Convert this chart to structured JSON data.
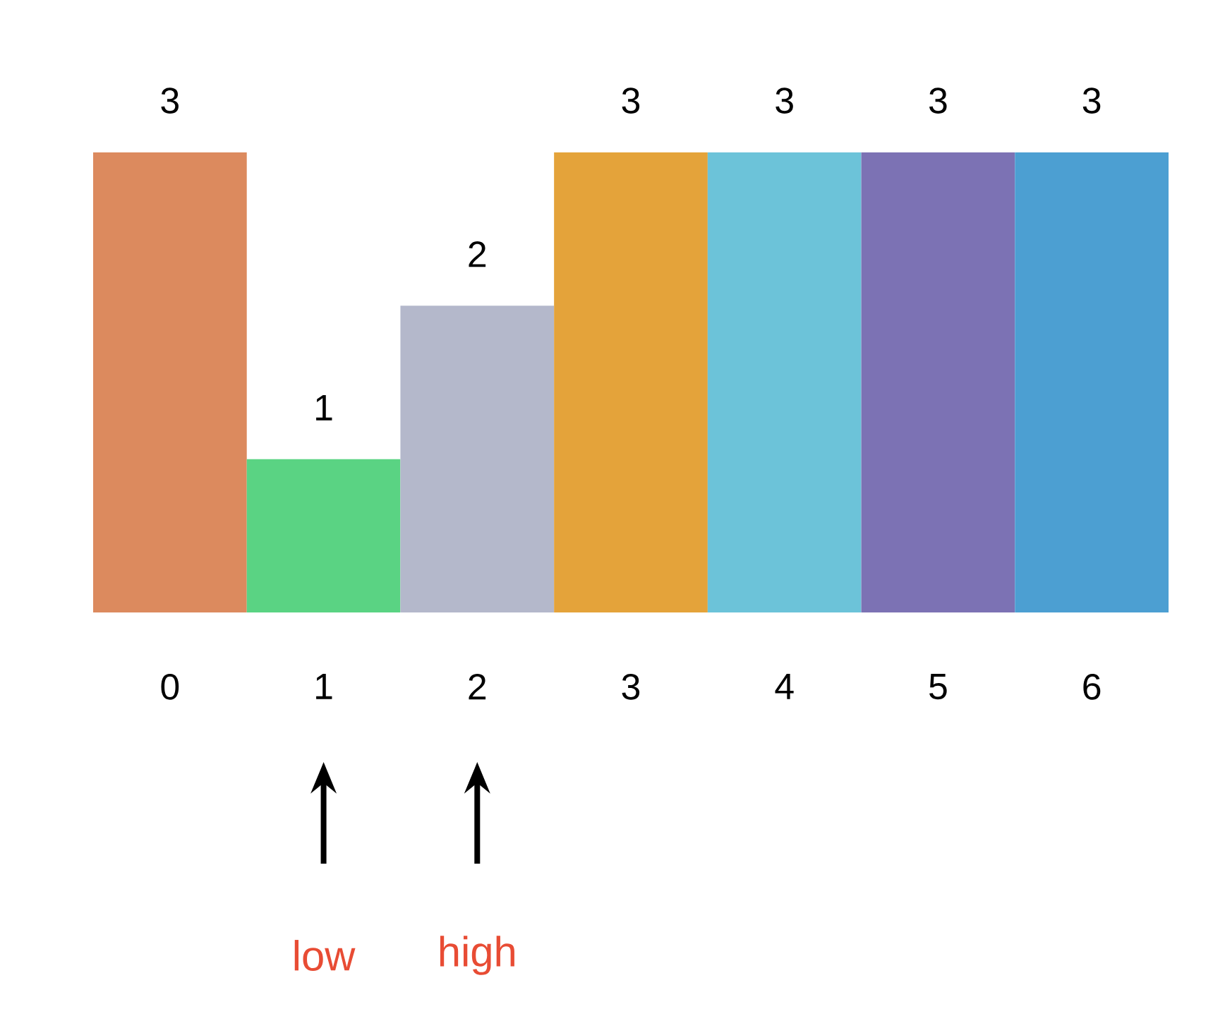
{
  "chart_data": {
    "type": "bar",
    "categories": [
      "0",
      "1",
      "2",
      "3",
      "4",
      "5",
      "6"
    ],
    "values": [
      3,
      1,
      2,
      3,
      3,
      3,
      3
    ],
    "colors": [
      "#dc8a5e",
      "#5ad383",
      "#b4b8cb",
      "#e4a33a",
      "#6cc3d9",
      "#7c72b4",
      "#4c9fd2"
    ],
    "data_labels": true,
    "tick_labels": "x",
    "annotations": [
      "low",
      "high"
    ]
  }
}
